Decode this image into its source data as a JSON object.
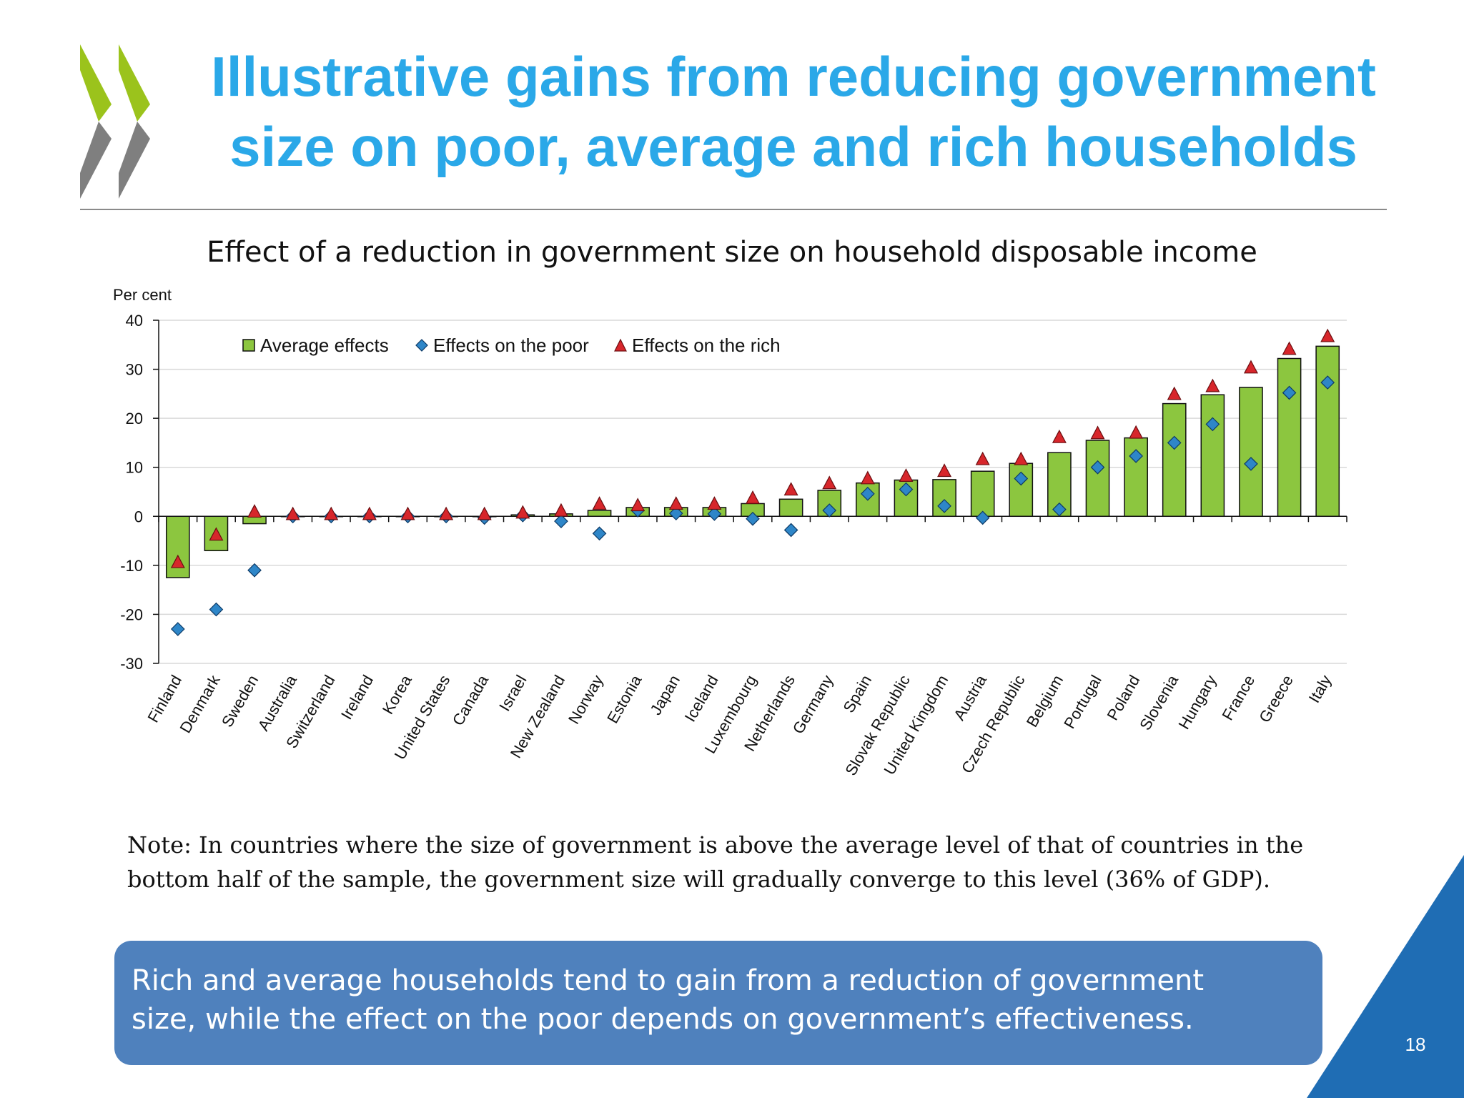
{
  "slide": {
    "title_line1": "Illustrative gains from reducing government",
    "title_line2": "size on poor, average and rich households",
    "note_line1": "Note: In countries where the size of government is above the average level of that of countries in the",
    "note_line2": "bottom half of the sample, the government size will gradually converge to this level (36% of GDP).",
    "callout_line1": "Rich and average households tend to gain from a reduction of government",
    "callout_line2": "size, while the effect on the poor depends on government’s effectiveness.",
    "page_number": "18"
  },
  "colors": {
    "title": "#2aa8e8",
    "bar": "#8cc63f",
    "poor_marker": "#2e86c8",
    "rich_marker": "#d7262b",
    "callout": "#4f81bd",
    "corner": "#1f6db4",
    "logo_green": "#9bc31c",
    "logo_grey": "#7f7f7f"
  },
  "chart_data": {
    "type": "bar",
    "title": "Effect of a reduction in government size on household disposable income",
    "ylabel": "Per cent",
    "xlabel": "",
    "ylim": [
      -30,
      40
    ],
    "yticks": [
      40,
      30,
      20,
      10,
      0,
      -10,
      -20,
      -30
    ],
    "grid": true,
    "legend_position": "top-left",
    "categories": [
      "Finland",
      "Denmark",
      "Sweden",
      "Australia",
      "Switzerland",
      "Ireland",
      "Korea",
      "United States",
      "Canada",
      "Israel",
      "New Zealand",
      "Norway",
      "Estonia",
      "Japan",
      "Iceland",
      "Luxembourg",
      "Netherlands",
      "Germany",
      "Spain",
      "Slovak Republic",
      "United Kingdom",
      "Austria",
      "Czech Republic",
      "Belgium",
      "Portugal",
      "Poland",
      "Slovenia",
      "Hungary",
      "France",
      "Greece",
      "Italy"
    ],
    "series": [
      {
        "name": "Average effects",
        "kind": "bar",
        "values": [
          -12.5,
          -7,
          -1.5,
          0,
          0,
          0,
          0,
          0,
          0,
          0.3,
          0.5,
          1.2,
          1.8,
          1.8,
          1.8,
          2.6,
          3.5,
          5.3,
          6.8,
          7.4,
          7.5,
          9.2,
          10.8,
          13,
          15.5,
          16,
          23,
          24.8,
          26.3,
          32.2,
          34.7
        ]
      },
      {
        "name": "Effects on the poor",
        "kind": "diamond",
        "values": [
          -23,
          -19,
          -11,
          0,
          0,
          0,
          0,
          0,
          -0.3,
          0.2,
          -1,
          -3.5,
          1.2,
          0.6,
          0.5,
          -0.5,
          -2.8,
          1.2,
          4.6,
          5.5,
          2.1,
          -0.3,
          7.7,
          1.4,
          10,
          12.3,
          15,
          18.8,
          10.7,
          25.2,
          27.3
        ]
      },
      {
        "name": "Effects on the rich",
        "kind": "triangle",
        "values": [
          -9.3,
          -3.7,
          1,
          0.5,
          0.5,
          0.5,
          0.5,
          0.5,
          0.5,
          0.8,
          1.2,
          2.6,
          2.3,
          2.6,
          2.6,
          3.8,
          5.5,
          6.8,
          7.8,
          8.3,
          9.3,
          11.7,
          11.7,
          16.2,
          17,
          17.1,
          25,
          26.6,
          30.4,
          34.2,
          36.8
        ]
      }
    ]
  }
}
